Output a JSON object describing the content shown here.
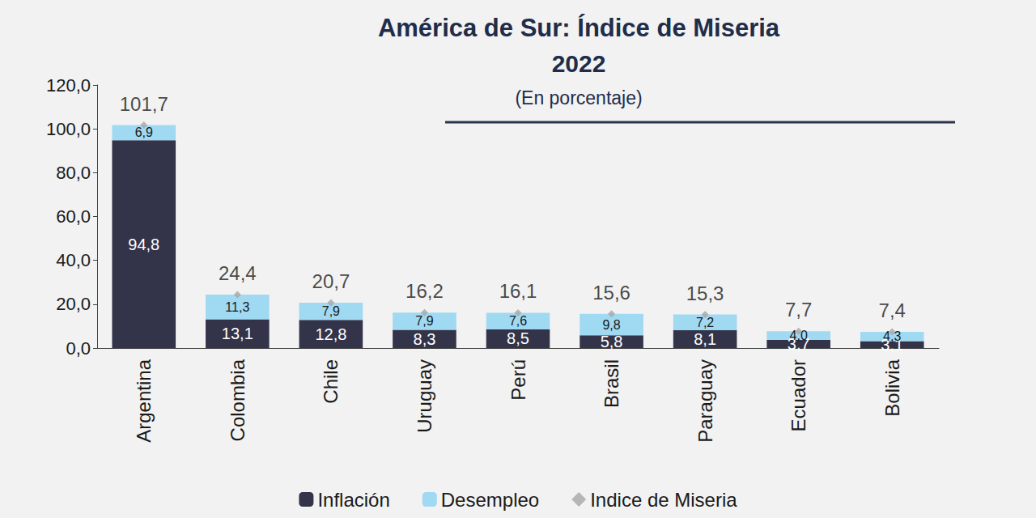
{
  "chart_data": {
    "type": "bar",
    "title": "América de Sur: Índice de Miseria",
    "subtitle": "2022",
    "annotations": [
      "(En porcentaje)"
    ],
    "categories": [
      "Argentina",
      "Colombia",
      "Chile",
      "Uruguay",
      "Perú",
      "Brasil",
      "Paraguay",
      "Ecuador",
      "Bolivia"
    ],
    "stacked": true,
    "data_labels": true,
    "grid": false,
    "legend": "bottom",
    "ylim": [
      0,
      120
    ],
    "yticks": [
      {
        "value": 0,
        "label": "0,0"
      },
      {
        "value": 20,
        "label": "20,0"
      },
      {
        "value": 40,
        "label": "40,0"
      },
      {
        "value": 60,
        "label": "60,0"
      },
      {
        "value": 80,
        "label": "80,0"
      },
      {
        "value": 100,
        "label": "100,0"
      },
      {
        "value": 120,
        "label": "120,0"
      }
    ],
    "series": [
      {
        "name": "Inflación",
        "type": "bar",
        "color": "#33334a",
        "values": [
          94.8,
          13.1,
          12.8,
          8.3,
          8.5,
          5.8,
          8.1,
          3.7,
          3.1
        ],
        "value_labels": [
          "94,8",
          "13,1",
          "12,8",
          "8,3",
          "8,5",
          "5,8",
          "8,1",
          "3,7",
          "3,1"
        ]
      },
      {
        "name": "Desempleo",
        "type": "bar",
        "color": "#9fd9f2",
        "values": [
          6.9,
          11.3,
          7.9,
          7.9,
          7.6,
          9.8,
          7.2,
          4.0,
          4.3
        ],
        "value_labels": [
          "6,9",
          "11,3",
          "7,9",
          "7,9",
          "7,6",
          "9,8",
          "7,2",
          "4,0",
          "4,3"
        ]
      },
      {
        "name": "Indice de Miseria",
        "type": "scatter",
        "marker": "diamond",
        "color": "#a6a6a6",
        "values": [
          101.7,
          24.4,
          20.7,
          16.2,
          16.1,
          15.6,
          15.3,
          7.7,
          7.4
        ],
        "value_labels": [
          "101,7",
          "24,4",
          "20,7",
          "16,2",
          "16,1",
          "15,6",
          "15,3",
          "7,7",
          "7,4"
        ]
      }
    ]
  }
}
